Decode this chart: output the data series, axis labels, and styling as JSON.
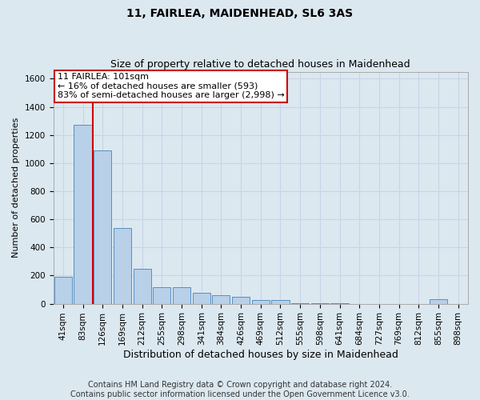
{
  "title": "11, FAIRLEA, MAIDENHEAD, SL6 3AS",
  "subtitle": "Size of property relative to detached houses in Maidenhead",
  "xlabel": "Distribution of detached houses by size in Maidenhead",
  "ylabel": "Number of detached properties",
  "categories": [
    "41sqm",
    "83sqm",
    "126sqm",
    "169sqm",
    "212sqm",
    "255sqm",
    "298sqm",
    "341sqm",
    "384sqm",
    "426sqm",
    "469sqm",
    "512sqm",
    "555sqm",
    "598sqm",
    "641sqm",
    "684sqm",
    "727sqm",
    "769sqm",
    "812sqm",
    "855sqm",
    "898sqm"
  ],
  "values": [
    190,
    1270,
    1090,
    540,
    250,
    120,
    115,
    75,
    60,
    50,
    28,
    25,
    5,
    3,
    1,
    0,
    0,
    0,
    0,
    30,
    0
  ],
  "bar_color": "#b8d0e8",
  "bar_edge_color": "#5590c0",
  "annotation_text_lines": [
    "11 FAIRLEA: 101sqm",
    "← 16% of detached houses are smaller (593)",
    "83% of semi-detached houses are larger (2,998) →"
  ],
  "annotation_box_color": "#ffffff",
  "annotation_box_edge_color": "#cc0000",
  "vline_color": "#cc0000",
  "grid_color": "#c8d4e8",
  "background_color": "#dce8f0",
  "ylim": [
    0,
    1650
  ],
  "yticks": [
    0,
    200,
    400,
    600,
    800,
    1000,
    1200,
    1400,
    1600
  ],
  "footer_text": "Contains HM Land Registry data © Crown copyright and database right 2024.\nContains public sector information licensed under the Open Government Licence v3.0.",
  "title_fontsize": 10,
  "subtitle_fontsize": 9,
  "xlabel_fontsize": 9,
  "ylabel_fontsize": 8,
  "tick_fontsize": 7.5,
  "footer_fontsize": 7,
  "annotation_fontsize": 8
}
